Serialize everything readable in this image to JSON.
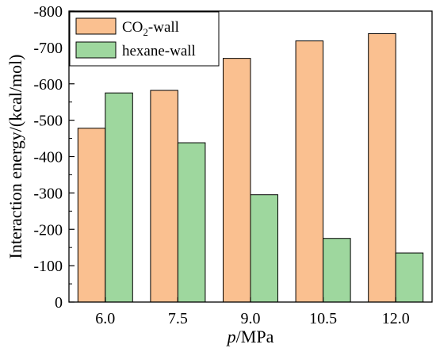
{
  "chart_data": {
    "type": "bar",
    "categories": [
      "6.0",
      "7.5",
      "9.0",
      "10.5",
      "12.0"
    ],
    "series": [
      {
        "name": "CO2-wall",
        "name_main": "CO",
        "name_sub": "2",
        "name_rest": "-wall",
        "color": "#FAC090",
        "values": [
          -478,
          -582,
          -670,
          -718,
          -738
        ]
      },
      {
        "name": "hexane-wall",
        "color": "#9ED79E",
        "values": [
          -575,
          -438,
          -295,
          -175,
          -135
        ]
      }
    ],
    "xlabel_italic": "p",
    "xlabel_rest": "/MPa",
    "ylabel": "Interaction energy/(kcal/mol)",
    "ylim": [
      0,
      -800
    ],
    "yticks": [
      "0",
      "-100",
      "-200",
      "-300",
      "-400",
      "-500",
      "-600",
      "-700",
      "-800"
    ],
    "ytick_values": [
      0,
      -100,
      -200,
      -300,
      -400,
      -500,
      -600,
      -700,
      -800
    ],
    "legend_position": "top-left",
    "grid": false
  }
}
